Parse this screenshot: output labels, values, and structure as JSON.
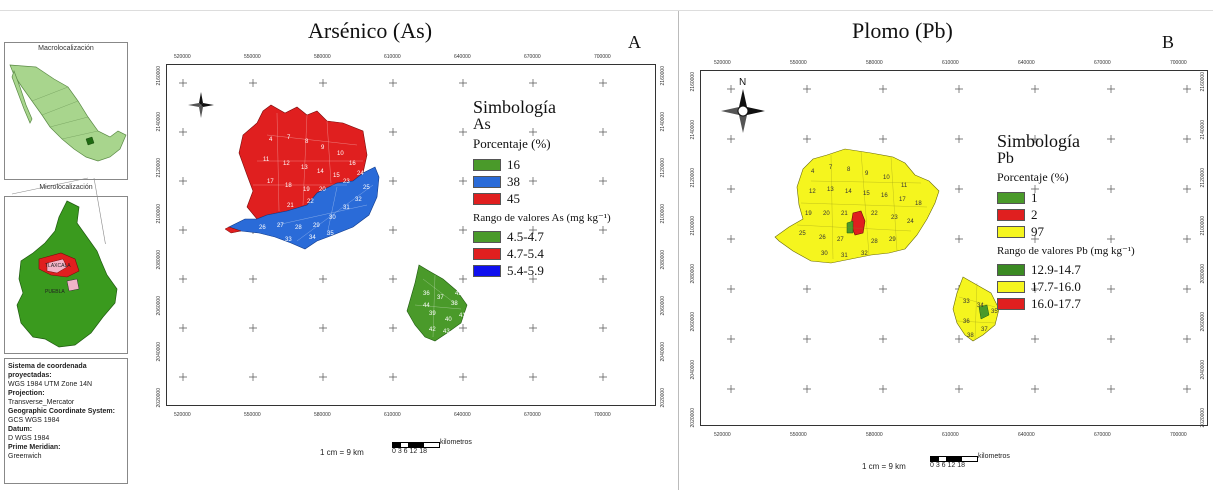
{
  "colors": {
    "green": "#4a9a2a",
    "red": "#e01f1f",
    "blue": "#2a6bd8",
    "yellow": "#f5f51e",
    "dark_green": "#3b8a23",
    "pure_blue": "#1010ee"
  },
  "inset": {
    "macro_title": "Macrolocalización",
    "micro_title": "Microlocalización",
    "micro_labels": [
      "TLAXCALA",
      "PUEBLA"
    ],
    "info_lines": [
      {
        "bold": true,
        "text": "Sistema de coordenada proyectadas:"
      },
      {
        "bold": false,
        "text": "WGS 1984 UTM Zone 14N"
      },
      {
        "bold": true,
        "text": "Projection:"
      },
      {
        "bold": false,
        "text": "Transverse_Mercator"
      },
      {
        "bold": true,
        "text": "Geographic Coordinate System:"
      },
      {
        "bold": false,
        "text": "GCS WGS 1984"
      },
      {
        "bold": true,
        "text": "Datum:"
      },
      {
        "bold": false,
        "text": "D WGS 1984"
      },
      {
        "bold": true,
        "text": "Prime Meridian:"
      },
      {
        "bold": false,
        "text": "Greenwich"
      }
    ]
  },
  "map_a": {
    "title": "Arsénico (As)",
    "letter": "A",
    "top_ticks": [
      "520000",
      "550000",
      "580000",
      "610000",
      "640000",
      "670000",
      "700000"
    ],
    "bottom_ticks": [
      "520000",
      "550000",
      "580000",
      "610000",
      "640000",
      "670000",
      "700000"
    ],
    "left_ticks": [
      "2160000",
      "2140000",
      "2120000",
      "2100000",
      "2080000",
      "2060000",
      "2040000",
      "2020000"
    ],
    "right_ticks": [
      "2160000",
      "2140000",
      "2120000",
      "2100000",
      "2080000",
      "2060000",
      "2040000",
      "2020000"
    ],
    "legend": {
      "title": "Simbología",
      "element": "As",
      "pct_header": "Porcentaje (%)",
      "pct_items": [
        {
          "color": "#4a9a2a",
          "label": "16"
        },
        {
          "color": "#2a6bd8",
          "label": "38"
        },
        {
          "color": "#e01f1f",
          "label": "45"
        }
      ],
      "range_header": "Rango de valores As (mg kg⁻¹)",
      "range_items": [
        {
          "color": "#4a9a2a",
          "label": "4.5-4.7"
        },
        {
          "color": "#e01f1f",
          "label": "4.7-5.4"
        },
        {
          "color": "#1010ee",
          "label": "5.4-5.9"
        }
      ]
    },
    "scale_text": "1 cm = 9 km",
    "scale_ticks": "0 3 6   12   18",
    "scale_unit": "kilometros",
    "region_numbers": [
      "4",
      "7",
      "8",
      "9",
      "10",
      "11",
      "12",
      "13",
      "14",
      "15",
      "16",
      "17",
      "18",
      "19",
      "20",
      "21",
      "22",
      "23",
      "24",
      "25",
      "26",
      "27",
      "28",
      "29",
      "30",
      "31",
      "32",
      "33",
      "34",
      "35",
      "36",
      "37",
      "38",
      "39",
      "40",
      "41",
      "42",
      "43",
      "44",
      "45"
    ]
  },
  "map_b": {
    "title": "Plomo (Pb)",
    "letter": "B",
    "top_ticks": [
      "520000",
      "550000",
      "580000",
      "610000",
      "640000",
      "670000",
      "700000"
    ],
    "bottom_ticks": [
      "520000",
      "550000",
      "580000",
      "610000",
      "640000",
      "670000",
      "700000"
    ],
    "left_ticks": [
      "2160000",
      "2140000",
      "2120000",
      "2100000",
      "2080000",
      "2060000",
      "2040000",
      "2020000"
    ],
    "right_ticks": [
      "2160000",
      "2140000",
      "2120000",
      "2100000",
      "2080000",
      "2060000",
      "2040000",
      "2020000"
    ],
    "north_label": "N",
    "legend": {
      "title": "Simbología",
      "element": "Pb",
      "pct_header": "Porcentaje (%)",
      "pct_items": [
        {
          "color": "#4a9a2a",
          "label": "1"
        },
        {
          "color": "#e01f1f",
          "label": "2"
        },
        {
          "color": "#f5f51e",
          "label": "97"
        }
      ],
      "range_header": "Rango de valores Pb (mg kg⁻¹)",
      "range_items": [
        {
          "color": "#3b8a23",
          "label": "12.9-14.7"
        },
        {
          "color": "#f5f51e",
          "label": "17.7-16.0"
        },
        {
          "color": "#e01f1f",
          "label": "16.0-17.7"
        }
      ]
    },
    "scale_text": "1 cm = 9 km",
    "scale_ticks": "0 3 6   12   18",
    "scale_unit": "kilometros"
  }
}
